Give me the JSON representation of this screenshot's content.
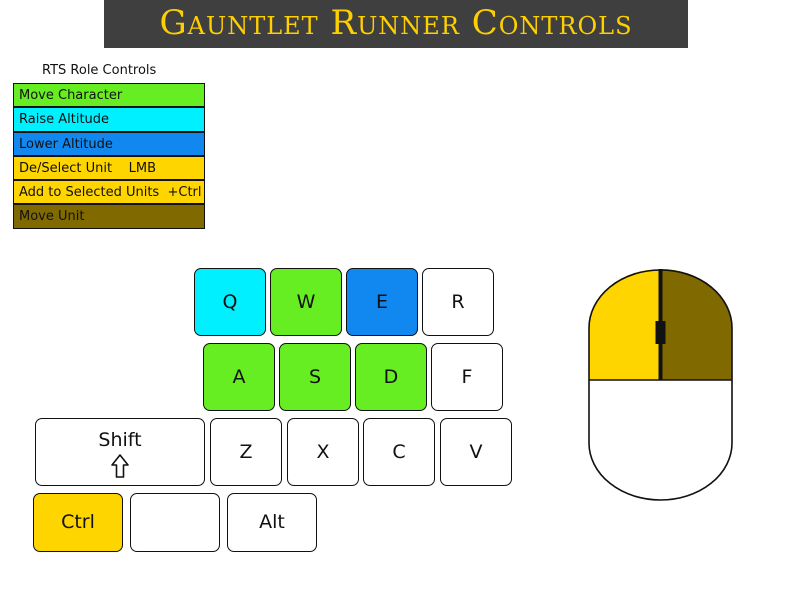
{
  "title": "Gauntlet Runner Controls",
  "colors": {
    "banner_bg": "#3f3f3f",
    "title_text": "#ffd000",
    "move_character": "#66ee22",
    "raise_altitude": "#00f0ff",
    "lower_altitude": "#1188f0",
    "select_unit": "#ffd500",
    "move_unit": "#806a00",
    "neutral_key": "#ffffff"
  },
  "legend": {
    "title": "RTS Role Controls",
    "items": [
      {
        "label": "Move Character",
        "color": "#66ee22"
      },
      {
        "label": "Raise Altitude",
        "color": "#00f0ff"
      },
      {
        "label": "Lower Altitude",
        "color": "#1188f0"
      },
      {
        "label": "De/Select Unit    LMB",
        "color": "#ffd500"
      },
      {
        "label": "Add to Selected Units  +Ctrl",
        "color": "#ffd500"
      },
      {
        "label": "Move Unit",
        "color": "#806a00"
      }
    ]
  },
  "keys": {
    "q": "Q",
    "w": "W",
    "e": "E",
    "r": "R",
    "a": "A",
    "s": "S",
    "d": "D",
    "f": "F",
    "shift": "Shift",
    "z": "Z",
    "x": "X",
    "c": "C",
    "v": "V",
    "ctrl": "Ctrl",
    "blank": "",
    "alt": "Alt"
  },
  "mouse": {
    "left_button_action": "De/Select Unit",
    "right_button_action": "Move Unit",
    "left_color": "#ffd500",
    "right_color": "#806a00"
  }
}
